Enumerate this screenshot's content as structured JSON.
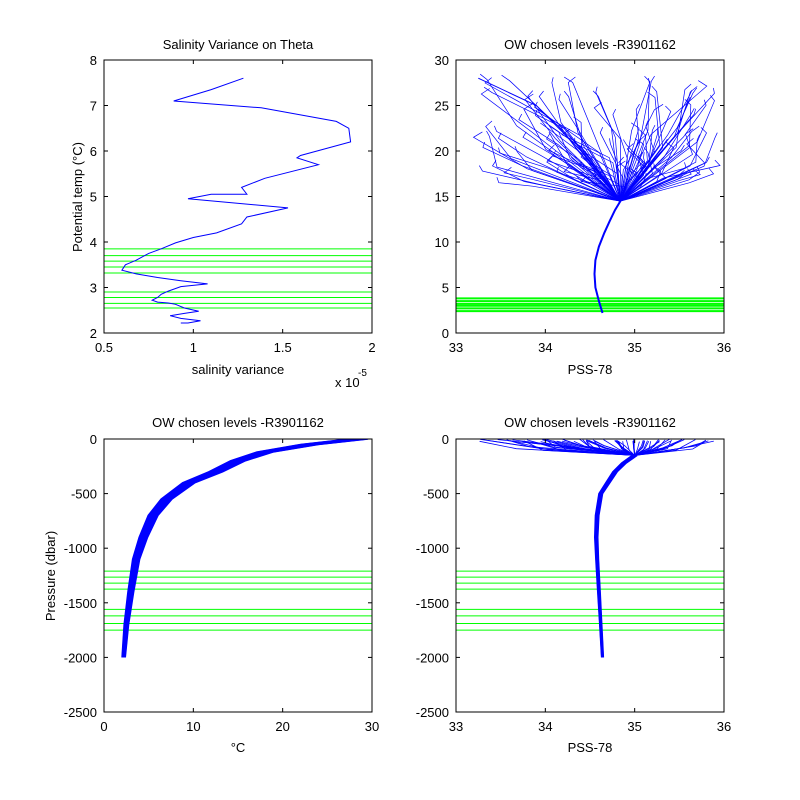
{
  "figure": {
    "background": "#ffffff",
    "line_color": "#0000ff",
    "level_color": "#00ff00"
  },
  "chart_data": [
    {
      "type": "line",
      "title": "Salinity Variance on Theta",
      "xlabel": "salinity variance",
      "ylabel": "Potential temp (°C)",
      "x_exponent_label": "x 10",
      "x_exponent": "-5",
      "xlim": [
        0.5,
        2
      ],
      "ylim": [
        2,
        8
      ],
      "xticks": [
        0.5,
        1,
        1.5,
        2
      ],
      "xtick_labels": [
        "0.5",
        "1",
        "1.5",
        "2"
      ],
      "yticks": [
        2,
        3,
        4,
        5,
        6,
        7,
        8
      ],
      "ytick_labels": [
        "2",
        "3",
        "4",
        "5",
        "6",
        "7",
        "8"
      ],
      "grid": false,
      "series": [
        {
          "x": [
            1.28,
            1.1,
            0.89,
            1.38,
            1.8,
            1.87,
            1.88,
            1.6,
            1.58,
            1.7,
            1.4,
            1.27,
            1.3,
            1.1,
            0.97,
            1.53,
            1.3,
            1.27,
            1.13,
            1.0,
            0.9,
            0.82,
            0.75,
            0.68,
            0.62,
            0.6,
            0.68,
            0.8,
            0.93,
            1.08,
            0.93,
            0.86,
            0.82,
            0.8,
            0.77,
            0.8,
            0.86,
            0.9,
            0.95,
            1.03,
            0.95,
            0.87,
            0.93,
            1.04,
            0.97,
            0.93
          ],
          "y": [
            7.6,
            7.35,
            7.1,
            6.95,
            6.65,
            6.5,
            6.2,
            5.9,
            5.85,
            5.7,
            5.4,
            5.2,
            5.05,
            5.05,
            4.95,
            4.75,
            4.55,
            4.4,
            4.2,
            4.1,
            3.98,
            3.85,
            3.75,
            3.6,
            3.5,
            3.38,
            3.3,
            3.22,
            3.15,
            3.08,
            3.02,
            2.92,
            2.85,
            2.78,
            2.72,
            2.68,
            2.66,
            2.63,
            2.55,
            2.48,
            2.43,
            2.38,
            2.32,
            2.27,
            2.22,
            2.22
          ]
        }
      ],
      "levels_y": [
        2.55,
        2.65,
        2.78,
        2.9,
        3.32,
        3.45,
        3.58,
        3.7,
        3.85
      ]
    },
    {
      "type": "line",
      "title": "OW chosen levels -R3901162",
      "xlabel": "PSS-78",
      "ylabel": "",
      "xlim": [
        33,
        36
      ],
      "ylim": [
        0,
        30
      ],
      "xticks": [
        33,
        34,
        35,
        36
      ],
      "xtick_labels": [
        "33",
        "34",
        "35",
        "36"
      ],
      "yticks": [
        0,
        5,
        10,
        15,
        20,
        25,
        30
      ],
      "ytick_labels": [
        "0",
        "5",
        "10",
        "15",
        "20",
        "25",
        "30"
      ],
      "grid": false,
      "profile_trunk": {
        "x": [
          34.64,
          34.6,
          34.56,
          34.55,
          34.56,
          34.6,
          34.66,
          34.72,
          34.78,
          34.84
        ],
        "y": [
          2.2,
          3.5,
          5.0,
          6.5,
          8.0,
          9.5,
          11.0,
          12.3,
          13.5,
          14.5
        ]
      },
      "profile_envelope": {
        "surface_salinity_range": [
          33.25,
          35.95
        ],
        "surface_temp_range": [
          17,
          28.5
        ],
        "warmest_profile": {
          "x": [
            34.85,
            34.4,
            33.9,
            33.25
          ],
          "y": [
            14.5,
            20,
            25,
            28
          ]
        }
      },
      "levels_y": [
        2.4,
        2.7,
        3.0,
        3.2,
        3.5,
        3.8
      ]
    },
    {
      "type": "line",
      "title": "OW chosen levels -R3901162",
      "xlabel": "°C",
      "ylabel": "Pressure (dbar)",
      "xlim": [
        0,
        30
      ],
      "ylim": [
        -2500,
        0
      ],
      "xticks": [
        0,
        10,
        20,
        30
      ],
      "xtick_labels": [
        "0",
        "10",
        "20",
        "30"
      ],
      "yticks": [
        -2500,
        -2000,
        -1500,
        -1000,
        -500,
        0
      ],
      "ytick_labels": [
        "-2500",
        "-2000",
        "-1500",
        "-1000",
        "-500",
        "0"
      ],
      "grid": false,
      "profile_band": {
        "x": [
          2.2,
          2.5,
          3.0,
          3.6,
          4.4,
          5.5,
          7.0,
          9.5,
          12.5,
          15.0,
          18.0,
          23.0,
          28.5
        ],
        "y": [
          -2000,
          -1700,
          -1400,
          -1100,
          -900,
          -700,
          -550,
          -400,
          -300,
          -200,
          -120,
          -50,
          0
        ],
        "band_width": 1.2
      },
      "levels_y": [
        -1210,
        -1265,
        -1320,
        -1375,
        -1560,
        -1620,
        -1690,
        -1750
      ]
    },
    {
      "type": "line",
      "title": "OW chosen levels -R3901162",
      "xlabel": "PSS-78",
      "ylabel": "",
      "xlim": [
        33,
        36
      ],
      "ylim": [
        -2500,
        0
      ],
      "xticks": [
        33,
        34,
        35,
        36
      ],
      "xtick_labels": [
        "33",
        "34",
        "35",
        "36"
      ],
      "yticks": [
        -2500,
        -2000,
        -1500,
        -1000,
        -500,
        0
      ],
      "ytick_labels": [
        "-2500",
        "-2000",
        "-1500",
        "-1000",
        "-500",
        "0"
      ],
      "grid": false,
      "profile_band": {
        "x": [
          34.64,
          34.62,
          34.6,
          34.58,
          34.57,
          34.58,
          34.62,
          34.7,
          34.78,
          34.88,
          35.0
        ],
        "y": [
          -2000,
          -1700,
          -1400,
          -1100,
          -900,
          -700,
          -500,
          -400,
          -300,
          -220,
          -150
        ],
        "band_width": 0.04
      },
      "surface_spread": {
        "salinity_range": [
          33.25,
          35.95
        ],
        "depth_range": [
          0,
          -150
        ]
      },
      "levels_y": [
        -1210,
        -1265,
        -1320,
        -1375,
        -1560,
        -1620,
        -1690,
        -1750
      ]
    }
  ]
}
